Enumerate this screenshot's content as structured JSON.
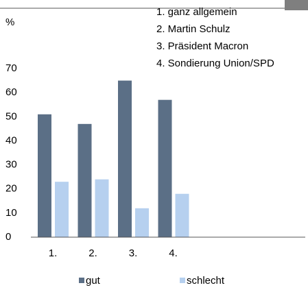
{
  "chart_data": {
    "type": "bar",
    "y_label": "%",
    "annotations": [
      "1. ganz allgemein",
      "2. Martin Schulz",
      "3. Präsident Macron",
      "4. Sondierung Union/SPD"
    ],
    "categories": [
      "1.",
      "2.",
      "3.",
      "4."
    ],
    "series": [
      {
        "name": "gut",
        "color": "#5b6f86",
        "values": [
          51,
          47,
          65,
          57
        ]
      },
      {
        "name": "schlecht",
        "color": "#b6d0ef",
        "values": [
          23,
          24,
          12,
          18
        ]
      }
    ],
    "ylim": [
      0,
      70
    ],
    "yticks": [
      0,
      10,
      20,
      30,
      40,
      50,
      60,
      70
    ],
    "grid": false,
    "legend": "bottom"
  }
}
